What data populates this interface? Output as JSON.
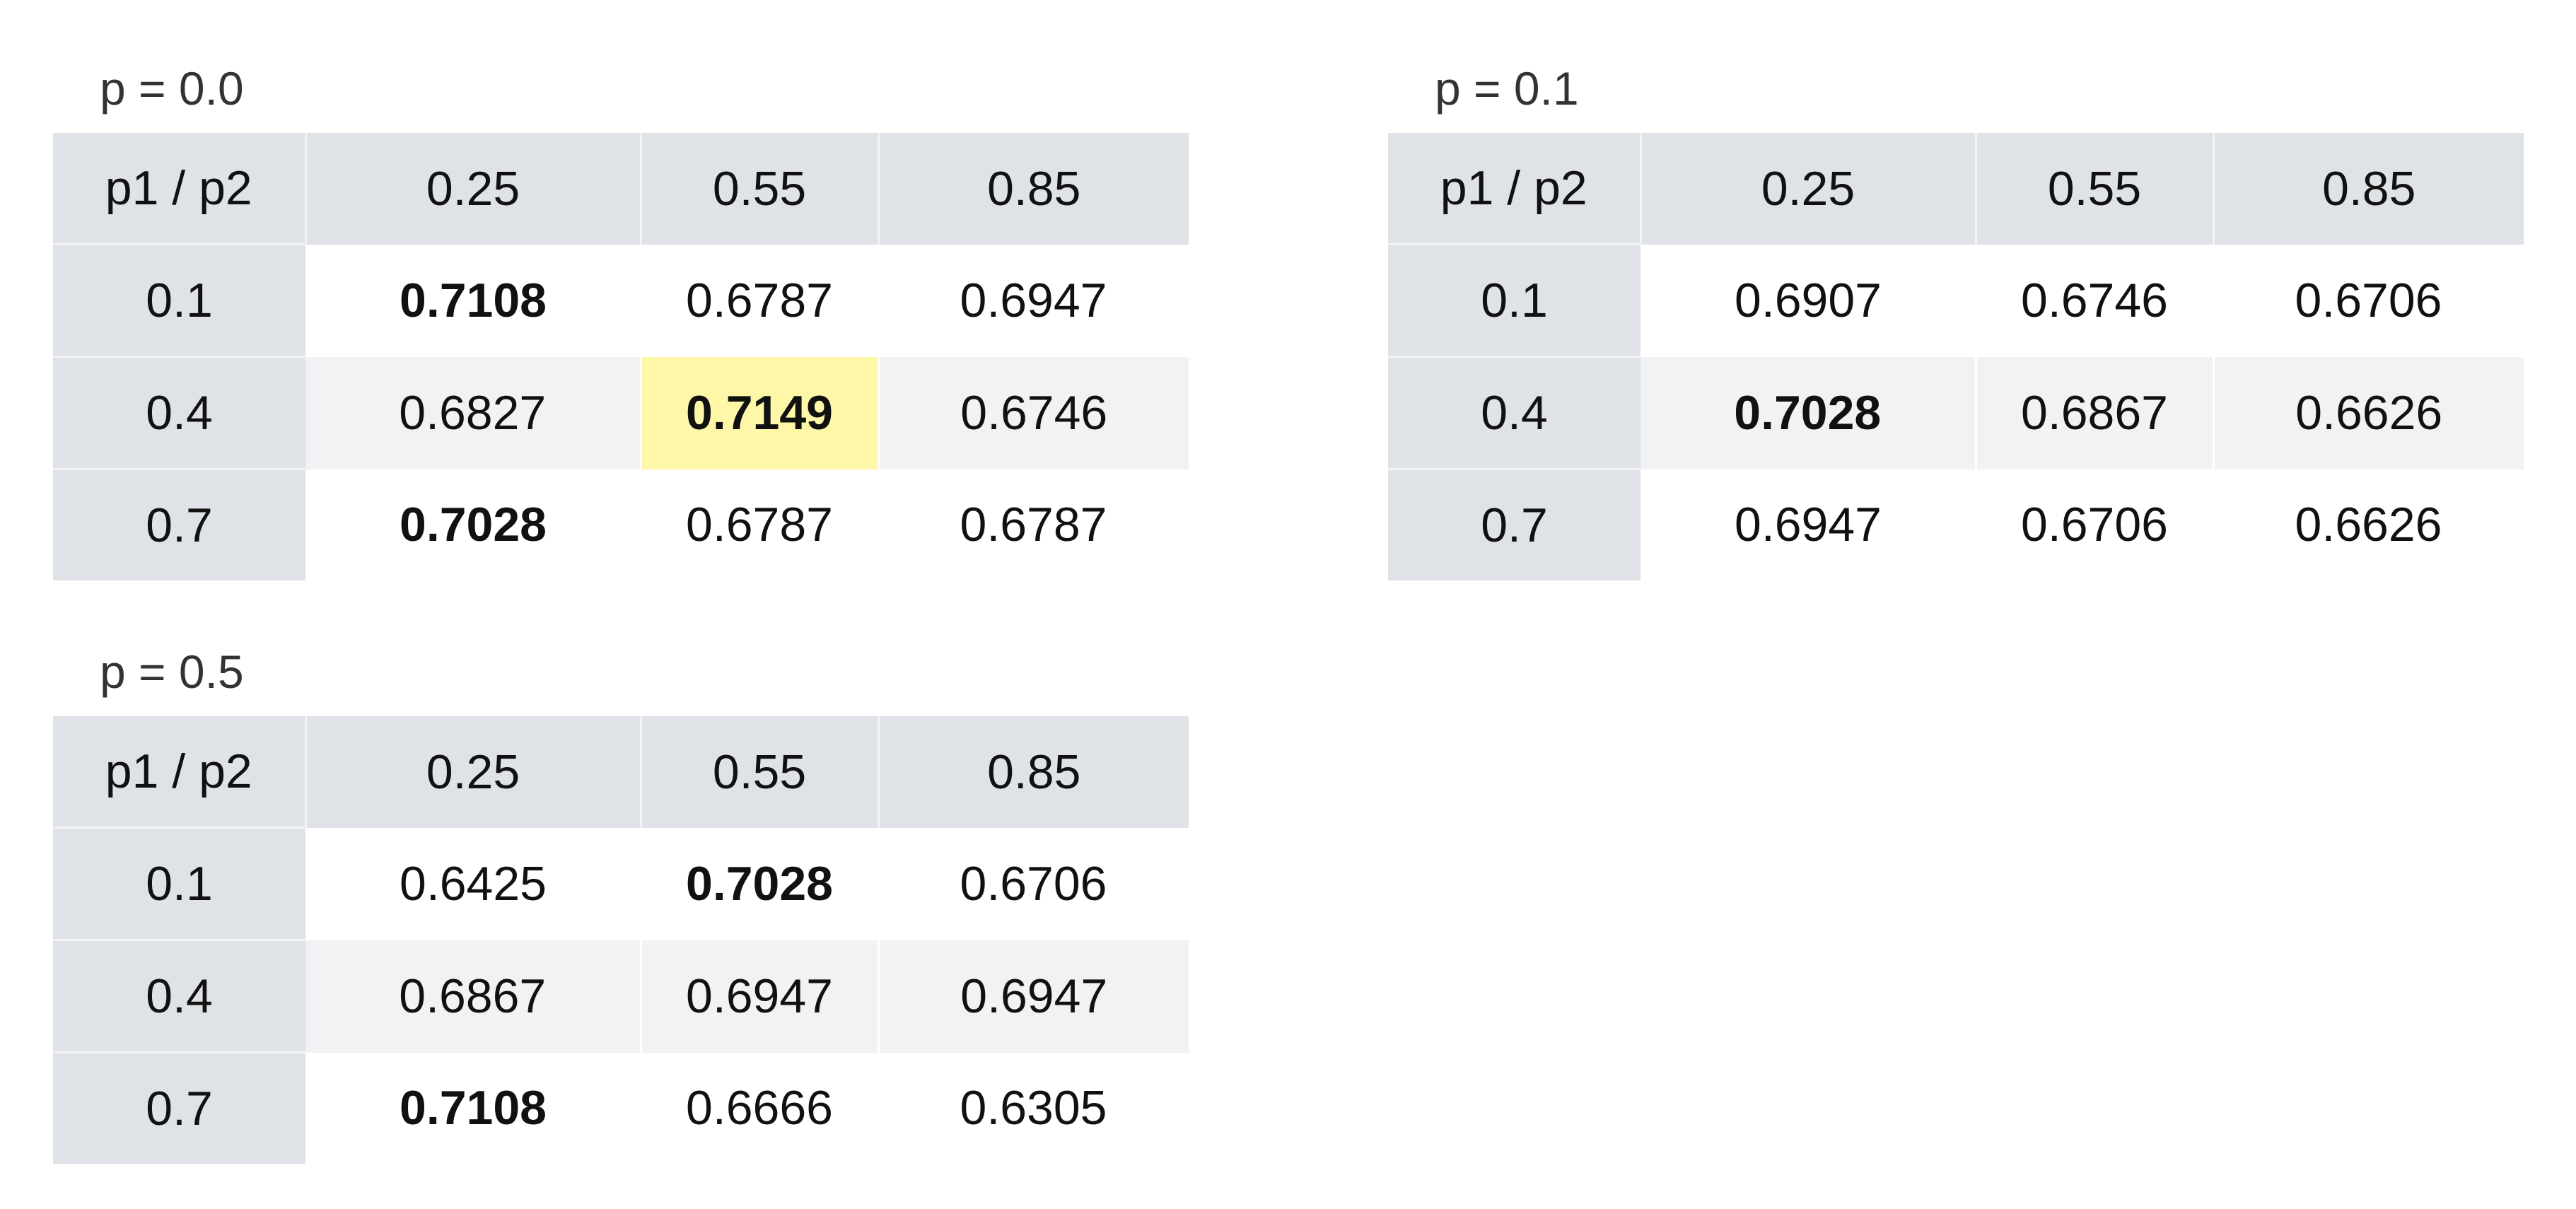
{
  "corner_label": "p1 / p2",
  "col_headers": [
    "0.25",
    "0.55",
    "0.85"
  ],
  "row_headers": [
    "0.1",
    "0.4",
    "0.7"
  ],
  "colors": {
    "header_bg": "#dfe2e6",
    "stripe_bg": "#f1f2f4",
    "highlight_bg": "#fff7a8"
  },
  "panels": [
    {
      "title": "p = 0.0",
      "rows": [
        {
          "cells": [
            {
              "value": "0.7108",
              "bold": true
            },
            {
              "value": "0.6787"
            },
            {
              "value": "0.6947"
            }
          ]
        },
        {
          "cells": [
            {
              "value": "0.6827"
            },
            {
              "value": "0.7149",
              "bold": true,
              "highlight": true
            },
            {
              "value": "0.6746"
            }
          ]
        },
        {
          "cells": [
            {
              "value": "0.7028",
              "bold": true
            },
            {
              "value": "0.6787"
            },
            {
              "value": "0.6787"
            }
          ]
        }
      ]
    },
    {
      "title": "p = 0.1",
      "rows": [
        {
          "cells": [
            {
              "value": "0.6907"
            },
            {
              "value": "0.6746"
            },
            {
              "value": "0.6706"
            }
          ]
        },
        {
          "cells": [
            {
              "value": "0.7028",
              "bold": true
            },
            {
              "value": "0.6867"
            },
            {
              "value": "0.6626"
            }
          ]
        },
        {
          "cells": [
            {
              "value": "0.6947"
            },
            {
              "value": "0.6706"
            },
            {
              "value": "0.6626"
            }
          ]
        }
      ]
    },
    {
      "title": "p = 0.5",
      "rows": [
        {
          "cells": [
            {
              "value": "0.6425"
            },
            {
              "value": "0.7028",
              "bold": true
            },
            {
              "value": "0.6706"
            }
          ]
        },
        {
          "cells": [
            {
              "value": "0.6867"
            },
            {
              "value": "0.6947"
            },
            {
              "value": "0.6947"
            }
          ]
        },
        {
          "cells": [
            {
              "value": "0.7108",
              "bold": true
            },
            {
              "value": "0.6666"
            },
            {
              "value": "0.6305"
            }
          ]
        }
      ]
    }
  ]
}
